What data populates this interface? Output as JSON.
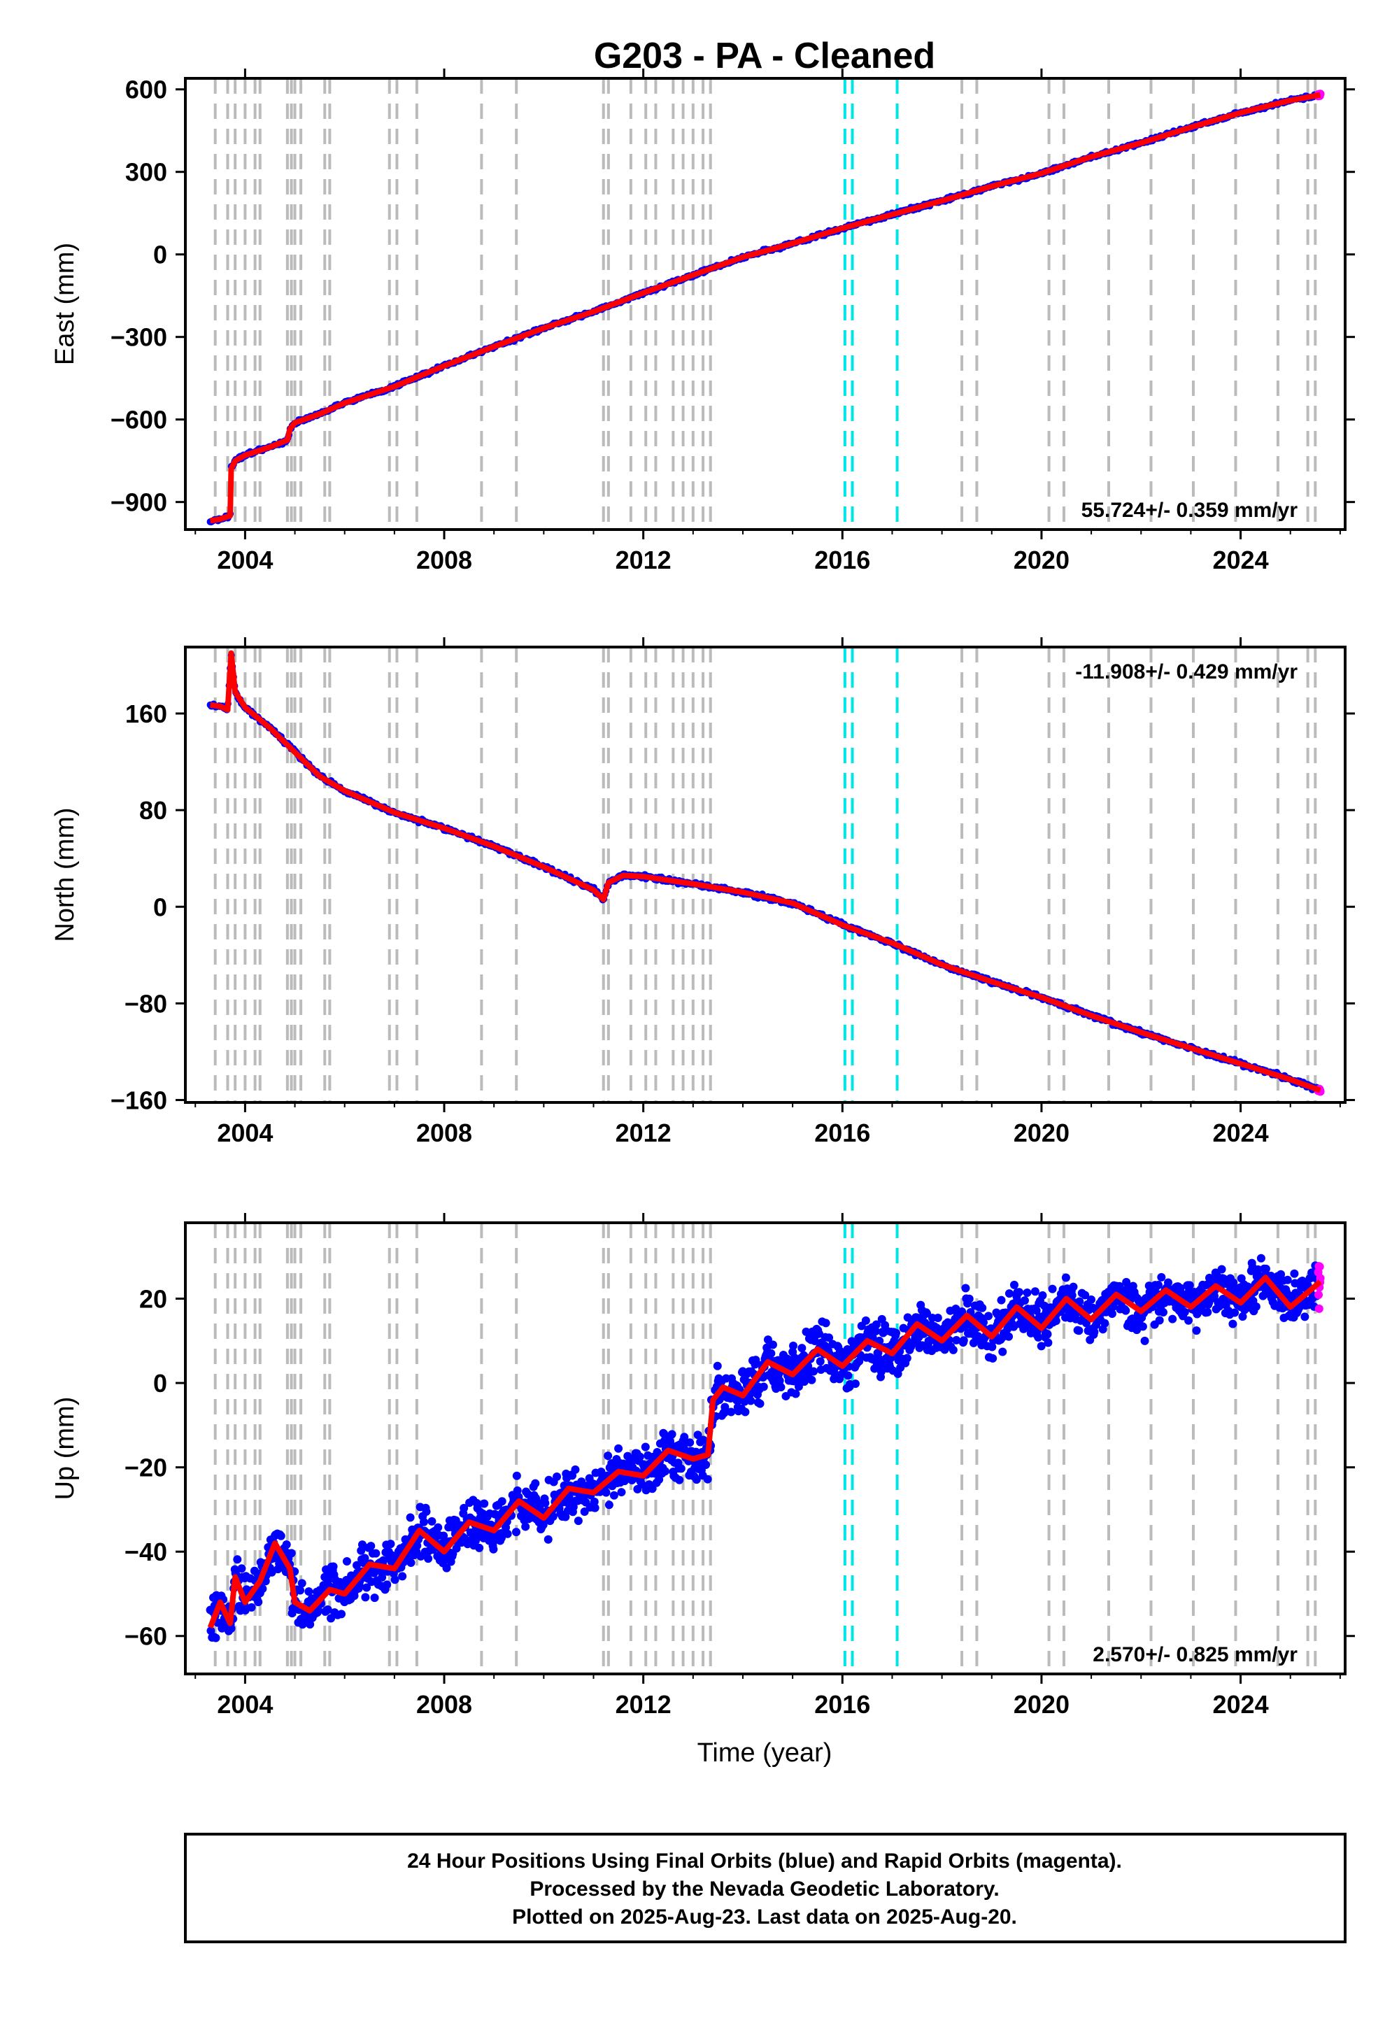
{
  "chart_data": {
    "type": "scatter",
    "title": "G203  - PA - Cleaned",
    "xlabel": "Time (year)",
    "xlim": [
      2002.8,
      2026.1
    ],
    "x_ticks": [
      2004,
      2008,
      2012,
      2016,
      2020,
      2024
    ],
    "x_tick_labels": [
      "2004",
      "2008",
      "2012",
      "2016",
      "2020",
      "2024"
    ],
    "colors": {
      "final_orbits": "#0000ff",
      "rapid_orbits": "#ff00ff",
      "model": "#ff0000",
      "gray_event_lines": "#bbbbbb",
      "cyan_event_lines": "#00e5e5"
    },
    "gray_event_lines": [
      2003.4,
      2003.65,
      2003.8,
      2004.0,
      2004.2,
      2004.3,
      2004.85,
      2004.93,
      2005.0,
      2005.12,
      2005.6,
      2005.7,
      2006.9,
      2007.05,
      2007.45,
      2008.75,
      2009.45,
      2011.2,
      2011.3,
      2011.75,
      2012.05,
      2012.25,
      2012.6,
      2012.8,
      2013.0,
      2013.2,
      2013.35,
      2018.4,
      2018.7,
      2020.15,
      2020.45,
      2021.35,
      2022.2,
      2023.05,
      2023.9,
      2024.75,
      2025.35,
      2025.5
    ],
    "cyan_event_lines": [
      2016.05,
      2016.2,
      2017.1
    ],
    "panels": [
      {
        "ylabel": "East (mm)",
        "ylim": [
          -1000,
          640
        ],
        "y_ticks": [
          -900,
          -600,
          -300,
          0,
          300,
          600
        ],
        "y_tick_labels": [
          "−900",
          "−600",
          "−300",
          "0",
          "300",
          "600"
        ],
        "rate": "55.724+/- 0.359 mm/yr",
        "rate_position": "bottom-right",
        "model_x": [
          2003.3,
          2003.5,
          2003.7,
          2003.72,
          2003.8,
          2004.0,
          2004.5,
          2004.85,
          2004.9,
          2005.0,
          2005.5,
          2006.0,
          2007.0,
          2008.0,
          2009.0,
          2010.0,
          2011.0,
          2012.0,
          2013.0,
          2014.0,
          2015.0,
          2016.0,
          2017.0,
          2018.0,
          2019.0,
          2020.0,
          2021.0,
          2022.0,
          2023.0,
          2024.0,
          2025.0,
          2025.6
        ],
        "model_y": [
          -968,
          -962,
          -950,
          -780,
          -750,
          -730,
          -700,
          -675,
          -635,
          -612,
          -580,
          -540,
          -480,
          -405,
          -335,
          -268,
          -208,
          -140,
          -75,
          -10,
          40,
          95,
          145,
          195,
          248,
          295,
          355,
          405,
          462,
          515,
          560,
          580
        ]
      },
      {
        "ylabel": "North (mm)",
        "ylim": [
          -162,
          215
        ],
        "y_ticks": [
          -160,
          -80,
          0,
          80,
          160
        ],
        "y_tick_labels": [
          "−160",
          "−80",
          "0",
          "80",
          "160"
        ],
        "rate": "-11.908+/- 0.429 mm/yr",
        "rate_position": "top-right",
        "model_x": [
          2003.3,
          2003.5,
          2003.65,
          2003.72,
          2003.8,
          2004.0,
          2004.5,
          2005.0,
          2005.5,
          2006.0,
          2007.0,
          2008.0,
          2009.0,
          2010.0,
          2011.0,
          2011.2,
          2011.3,
          2011.6,
          2012.0,
          2012.5,
          2013.0,
          2014.0,
          2015.0,
          2016.0,
          2017.0,
          2018.0,
          2019.0,
          2020.0,
          2021.0,
          2022.0,
          2023.0,
          2024.0,
          2025.0,
          2025.6
        ],
        "model_y": [
          167,
          166,
          163,
          210,
          178,
          165,
          148,
          128,
          108,
          96,
          78,
          65,
          50,
          33,
          14,
          6,
          20,
          26,
          25,
          22,
          19,
          12,
          3,
          -15,
          -30,
          -48,
          -62,
          -75,
          -90,
          -104,
          -117,
          -130,
          -143,
          -152
        ]
      },
      {
        "ylabel": "Up (mm)",
        "ylim": [
          -69,
          38
        ],
        "y_ticks": [
          -60,
          -40,
          -20,
          0,
          20
        ],
        "y_tick_labels": [
          "−60",
          "−40",
          "−20",
          "0",
          "20"
        ],
        "rate": "2.570+/- 0.825 mm/yr",
        "rate_position": "bottom-right",
        "model_x": [
          2003.3,
          2003.5,
          2003.7,
          2003.8,
          2004.0,
          2004.3,
          2004.6,
          2004.9,
          2005.0,
          2005.3,
          2005.7,
          2006.0,
          2006.5,
          2007.0,
          2007.5,
          2008.0,
          2008.5,
          2009.0,
          2009.5,
          2010.0,
          2010.5,
          2011.0,
          2011.5,
          2012.0,
          2012.5,
          2013.0,
          2013.3,
          2013.4,
          2013.6,
          2014.0,
          2014.5,
          2015.0,
          2015.5,
          2016.0,
          2016.5,
          2017.0,
          2017.5,
          2018.0,
          2018.5,
          2019.0,
          2019.5,
          2020.0,
          2020.5,
          2021.0,
          2021.5,
          2022.0,
          2022.5,
          2023.0,
          2023.5,
          2024.0,
          2024.5,
          2025.0,
          2025.6
        ],
        "model_y": [
          -58,
          -52,
          -57,
          -46,
          -52,
          -47,
          -38,
          -44,
          -52,
          -54,
          -49,
          -50,
          -43,
          -44,
          -35,
          -40,
          -33,
          -35,
          -28,
          -32,
          -25,
          -26,
          -21,
          -22,
          -16,
          -18,
          -17,
          -4,
          -1,
          -3,
          5,
          2,
          8,
          4,
          10,
          7,
          14,
          10,
          16,
          11,
          18,
          13,
          20,
          15,
          21,
          17,
          22,
          18,
          23,
          19,
          25,
          18,
          24
        ]
      }
    ]
  },
  "footer": {
    "line1": "24 Hour Positions Using Final Orbits (blue) and Rapid Orbits (magenta).",
    "line2": "Processed by the Nevada Geodetic Laboratory.",
    "line3": "Plotted on 2025-Aug-23. Last data on 2025-Aug-20."
  }
}
